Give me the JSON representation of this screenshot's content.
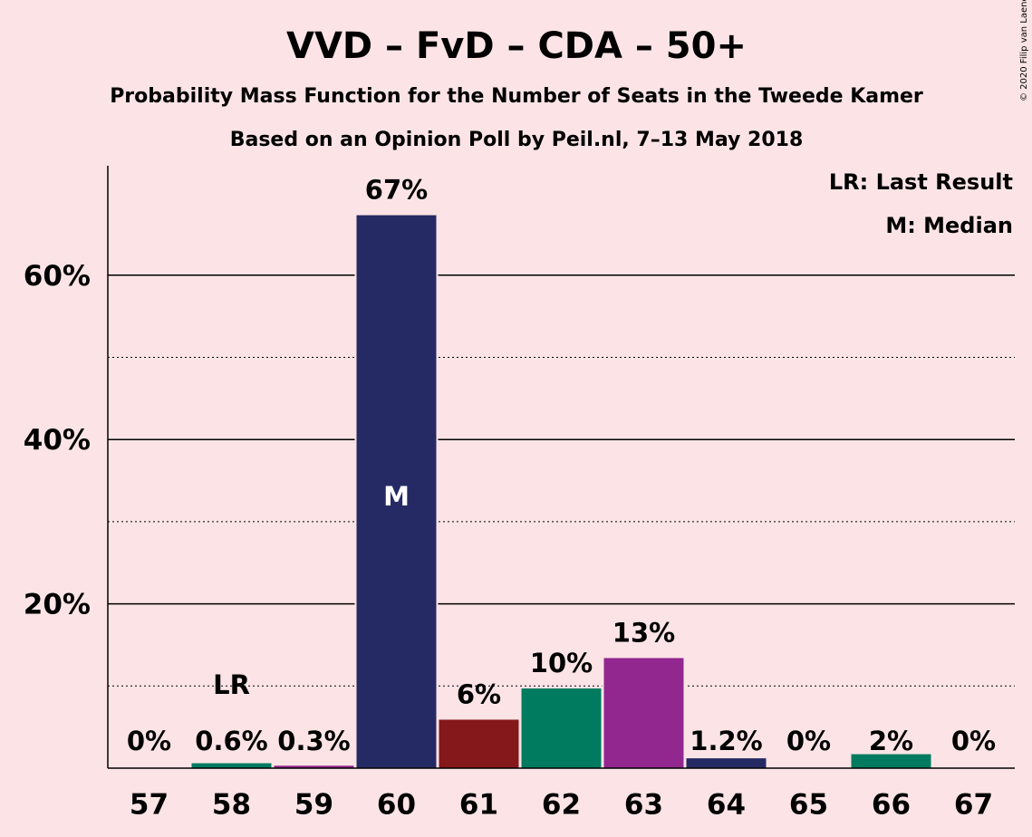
{
  "title": "VVD – FvD – CDA – 50+",
  "subtitle1": "Probability Mass Function for the Number of Seats in the Tweede Kamer",
  "subtitle2": "Based on an Opinion Poll by Peil.nl, 7–13 May 2018",
  "legend": {
    "last_result": "LR: Last Result",
    "median": "M: Median"
  },
  "credit": "© 2020 Filip van Laenen",
  "colors": {
    "background": "#fce4e6",
    "VVD": "#262a64",
    "FvD": "#85181a",
    "CDA": "#007b5f",
    "50PLUS": "#92278f"
  },
  "chart_data": {
    "type": "bar",
    "categories": [
      "57",
      "58",
      "59",
      "60",
      "61",
      "62",
      "63",
      "64",
      "65",
      "66",
      "67"
    ],
    "values": [
      0,
      0.6,
      0.3,
      67.3,
      5.9,
      9.7,
      13.4,
      1.2,
      0,
      1.7,
      0
    ],
    "labels": [
      "0%",
      "0.6%",
      "0.3%",
      "67%",
      "6%",
      "10%",
      "13%",
      "1.2%",
      "0%",
      "2%",
      "0%"
    ],
    "bar_colors": [
      "#262a64",
      "#007b5f",
      "#92278f",
      "#262a64",
      "#85181a",
      "#007b5f",
      "#92278f",
      "#262a64",
      "#85181a",
      "#007b5f",
      "#92278f"
    ],
    "ylim": [
      0,
      73
    ],
    "yticks": [
      {
        "value": 20,
        "label": "20%"
      },
      {
        "value": 40,
        "label": "40%"
      },
      {
        "value": 60,
        "label": "60%"
      }
    ],
    "minor_gridlines": [
      10,
      30,
      50
    ],
    "last_result_seat": "58",
    "last_result_marker": "LR",
    "median_seat": "60",
    "median_marker": "M"
  }
}
